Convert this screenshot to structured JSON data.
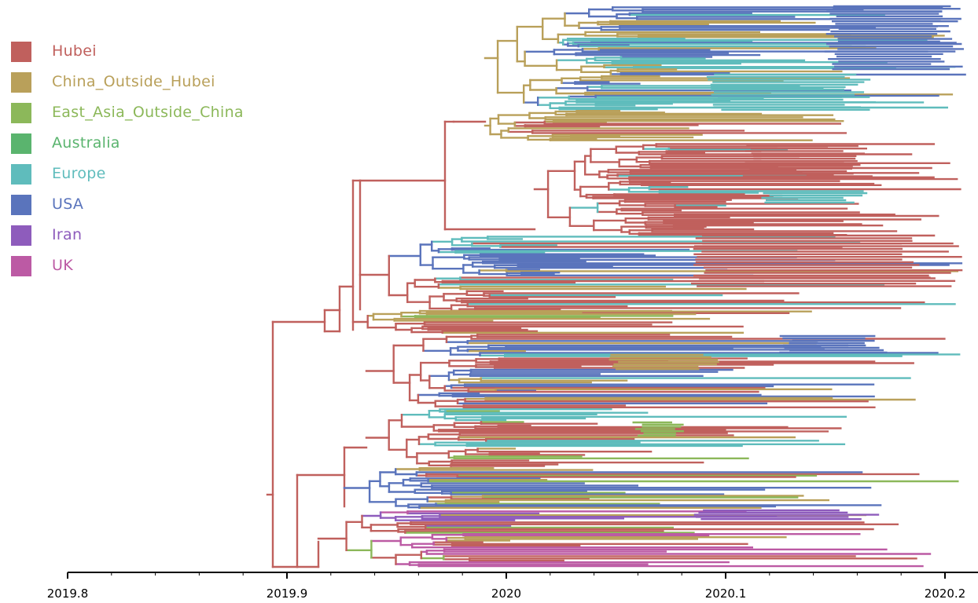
{
  "legend": [
    {
      "label": "Hubei",
      "color": "#c0605d"
    },
    {
      "label": "China_Outside_Hubei",
      "color": "#b9a05a"
    },
    {
      "label": "East_Asia_Outside_China",
      "color": "#8cb85a"
    },
    {
      "label": "Australia",
      "color": "#5ab46e"
    },
    {
      "label": "Europe",
      "color": "#5fbcbc"
    },
    {
      "label": "USA",
      "color": "#5a74bc"
    },
    {
      "label": "Iran",
      "color": "#8e5cbc"
    },
    {
      "label": "UK",
      "color": "#bc5aa4"
    }
  ],
  "axis": {
    "ticks": [
      {
        "value": 2019.8,
        "label": "2019.8"
      },
      {
        "value": 2019.9,
        "label": "2019.9"
      },
      {
        "value": 2020.0,
        "label": "2020"
      },
      {
        "value": 2020.1,
        "label": "2020.1"
      },
      {
        "value": 2020.2,
        "label": "2020.2"
      }
    ],
    "range": [
      2019.8,
      2020.215
    ]
  },
  "tree": {
    "clades": [
      {
        "name": "clade-usa-europe-top",
        "root": 2019.975,
        "tips": [
          [
            2020.2,
            2020.21
          ],
          [
            2020.2,
            2020.21
          ],
          [
            2020.19,
            2020.21
          ],
          [
            2020.18,
            2020.2
          ]
        ],
        "colors": [
          "#5a74bc",
          "#5fbcbc",
          "#b9a05a"
        ]
      },
      {
        "name": "clade-hubei-1",
        "root": 2019.975,
        "tips": [
          [
            2020.15,
            2020.21
          ],
          [
            2020.16,
            2020.2
          ]
        ],
        "colors": [
          "#c0605d",
          "#5fbcbc"
        ]
      },
      {
        "name": "clade-hubei-2",
        "root": 2019.98,
        "tips": [
          [
            2020.16,
            2020.21
          ]
        ],
        "colors": [
          "#c0605d",
          "#5a74bc",
          "#b9a05a"
        ]
      },
      {
        "name": "clade-mixed-usa",
        "root": 2019.97,
        "tips": [
          [
            2020.12,
            2020.21
          ]
        ],
        "colors": [
          "#5a74bc",
          "#c0605d",
          "#b9a05a"
        ]
      },
      {
        "name": "clade-east-asia",
        "root": 2019.98,
        "tips": [
          [
            2020.09,
            2020.17
          ]
        ],
        "colors": [
          "#8cb85a",
          "#b9a05a",
          "#c0605d",
          "#5fbcbc"
        ]
      },
      {
        "name": "clade-europe-usa-lower",
        "root": 2020.0,
        "tips": [
          [
            2020.16,
            2020.21
          ]
        ],
        "colors": [
          "#c0605d",
          "#5a74bc",
          "#5fbcbc"
        ]
      },
      {
        "name": "clade-iran",
        "root": 2020.0,
        "tips": [
          [
            2020.14,
            2020.17
          ]
        ],
        "colors": [
          "#8e5cbc",
          "#c0605d",
          "#b9a05a",
          "#8cb85a"
        ]
      }
    ]
  }
}
